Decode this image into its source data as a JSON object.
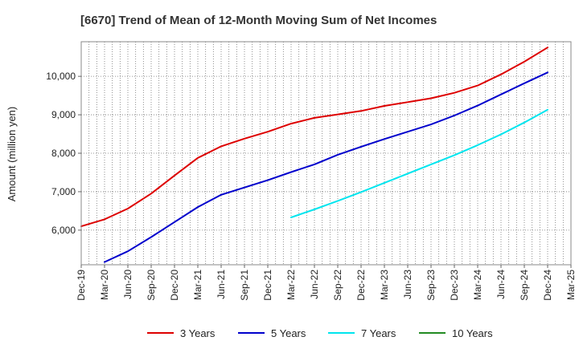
{
  "chart_data": {
    "type": "line",
    "title": "[6670]  Trend of Mean of 12-Month Moving Sum of Net Incomes",
    "xlabel": "",
    "ylabel": "Amount (million yen)",
    "ylim": [
      5100,
      10900
    ],
    "yticks": [
      6000,
      7000,
      8000,
      9000,
      10000
    ],
    "ytick_labels": [
      "6,000",
      "7,000",
      "8,000",
      "9,000",
      "10,000"
    ],
    "xlim": [
      "2019-12",
      "2025-03"
    ],
    "xtick_labels": [
      "Dec-19",
      "Mar-20",
      "Jun-20",
      "Sep-20",
      "Dec-20",
      "Mar-21",
      "Jun-21",
      "Sep-21",
      "Dec-21",
      "Mar-22",
      "Jun-22",
      "Sep-22",
      "Dec-22",
      "Mar-23",
      "Jun-23",
      "Sep-23",
      "Dec-23",
      "Mar-24",
      "Jun-24",
      "Sep-24",
      "Dec-24",
      "Mar-25"
    ],
    "grid": true,
    "legend_position": "bottom",
    "series": [
      {
        "name": "3 Years",
        "color": "#dd0000",
        "points": [
          [
            "2019-12",
            6100
          ],
          [
            "2020-03",
            6280
          ],
          [
            "2020-06",
            6560
          ],
          [
            "2020-09",
            6950
          ],
          [
            "2020-12",
            7420
          ],
          [
            "2021-03",
            7880
          ],
          [
            "2021-06",
            8180
          ],
          [
            "2021-09",
            8380
          ],
          [
            "2021-12",
            8560
          ],
          [
            "2022-03",
            8770
          ],
          [
            "2022-06",
            8920
          ],
          [
            "2022-09",
            9010
          ],
          [
            "2022-12",
            9100
          ],
          [
            "2023-03",
            9230
          ],
          [
            "2023-06",
            9330
          ],
          [
            "2023-09",
            9430
          ],
          [
            "2023-12",
            9570
          ],
          [
            "2024-03",
            9760
          ],
          [
            "2024-06",
            10050
          ],
          [
            "2024-09",
            10380
          ],
          [
            "2024-12",
            10750
          ]
        ]
      },
      {
        "name": "5 Years",
        "color": "#0000cc",
        "points": [
          [
            "2020-03",
            5170
          ],
          [
            "2020-06",
            5450
          ],
          [
            "2020-09",
            5820
          ],
          [
            "2020-12",
            6210
          ],
          [
            "2021-03",
            6600
          ],
          [
            "2021-06",
            6920
          ],
          [
            "2021-09",
            7110
          ],
          [
            "2021-12",
            7300
          ],
          [
            "2022-03",
            7510
          ],
          [
            "2022-06",
            7710
          ],
          [
            "2022-09",
            7960
          ],
          [
            "2022-12",
            8170
          ],
          [
            "2023-03",
            8370
          ],
          [
            "2023-06",
            8560
          ],
          [
            "2023-09",
            8750
          ],
          [
            "2023-12",
            8980
          ],
          [
            "2024-03",
            9240
          ],
          [
            "2024-06",
            9530
          ],
          [
            "2024-09",
            9820
          ],
          [
            "2024-12",
            10100
          ]
        ]
      },
      {
        "name": "7 Years",
        "color": "#00e5ee",
        "points": [
          [
            "2022-03",
            6330
          ],
          [
            "2022-06",
            6540
          ],
          [
            "2022-09",
            6760
          ],
          [
            "2022-12",
            6990
          ],
          [
            "2023-03",
            7230
          ],
          [
            "2023-06",
            7470
          ],
          [
            "2023-09",
            7710
          ],
          [
            "2023-12",
            7950
          ],
          [
            "2024-03",
            8210
          ],
          [
            "2024-06",
            8490
          ],
          [
            "2024-09",
            8800
          ],
          [
            "2024-12",
            9130
          ]
        ]
      },
      {
        "name": "10 Years",
        "color": "#228b22",
        "points": []
      }
    ]
  }
}
